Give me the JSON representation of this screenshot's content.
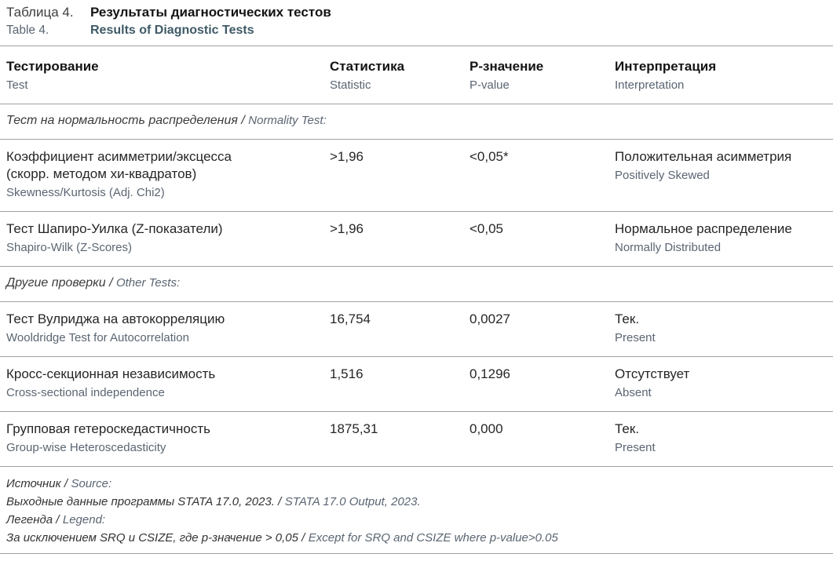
{
  "title": {
    "ru_prefix": "Таблица 4.",
    "ru_text": "Результаты диагностических тестов",
    "en_prefix": "Table 4.",
    "en_text": "Results of Diagnostic Tests"
  },
  "columns": [
    {
      "ru": "Тестирование",
      "en": "Test"
    },
    {
      "ru": "Статистика",
      "en": "Statistic"
    },
    {
      "ru": "P-значение",
      "en": "P-value"
    },
    {
      "ru": "Интерпретация",
      "en": "Interpretation"
    }
  ],
  "sections": [
    {
      "label_ru": "Тест на нормальность распределения /",
      "label_en": "Normality Test:",
      "rows": [
        {
          "name_ru": "Коэффициент асимметрии/эксцесса (скорр. методом хи-квадратов)",
          "name_en": "Skewness/Kurtosis (Adj. Chi2)",
          "statistic": ">1,96",
          "p_value": "<0,05*",
          "interpretation_ru": "Положительная асимметрия",
          "interpretation_en": "Positively Skewed"
        },
        {
          "name_ru": "Тест Шапиро-Уилка (Z-показатели)",
          "name_en": "Shapiro-Wilk (Z-Scores)",
          "statistic": ">1,96",
          "p_value": "<0,05",
          "interpretation_ru": "Нормальное распределение",
          "interpretation_en": "Normally Distributed"
        }
      ]
    },
    {
      "label_ru": "Другие проверки /",
      "label_en": "Other Tests:",
      "rows": [
        {
          "name_ru": "Тест Вулриджа на автокорреляцию",
          "name_en": "Wooldridge Test for Autocorrelation",
          "statistic": "16,754",
          "p_value": "0,0027",
          "interpretation_ru": "Тек.",
          "interpretation_en": "Present"
        },
        {
          "name_ru": "Кросс-секционная независимость",
          "name_en": "Cross-sectional independence",
          "statistic": "1,516",
          "p_value": "0,1296",
          "interpretation_ru": "Отсутствует",
          "interpretation_en": "Absent"
        },
        {
          "name_ru": "Групповая гетероскедастичность",
          "name_en": "Group-wise Heteroscedasticity",
          "statistic": "1875,31",
          "p_value": "0,000",
          "interpretation_ru": "Тек.",
          "interpretation_en": "Present"
        }
      ]
    }
  ],
  "footer": {
    "source_label_ru": "Источник /",
    "source_label_en": "Source:",
    "source_text_ru": "Выходные данные программы STATA 17.0, 2023. /",
    "source_text_en": "STATA 17.0 Output, 2023.",
    "legend_label_ru": "Легенда /",
    "legend_label_en": "Legend:",
    "legend_text_ru": "За исключением SRQ и CSIZE, где p-значение > 0,05 /",
    "legend_text_en": "Except for SRQ and CSIZE where p-value>0.05"
  },
  "colors": {
    "title_en_accent": "#3e5a66",
    "secondary_text": "#5a6572",
    "rule": "#a0a0a0"
  }
}
